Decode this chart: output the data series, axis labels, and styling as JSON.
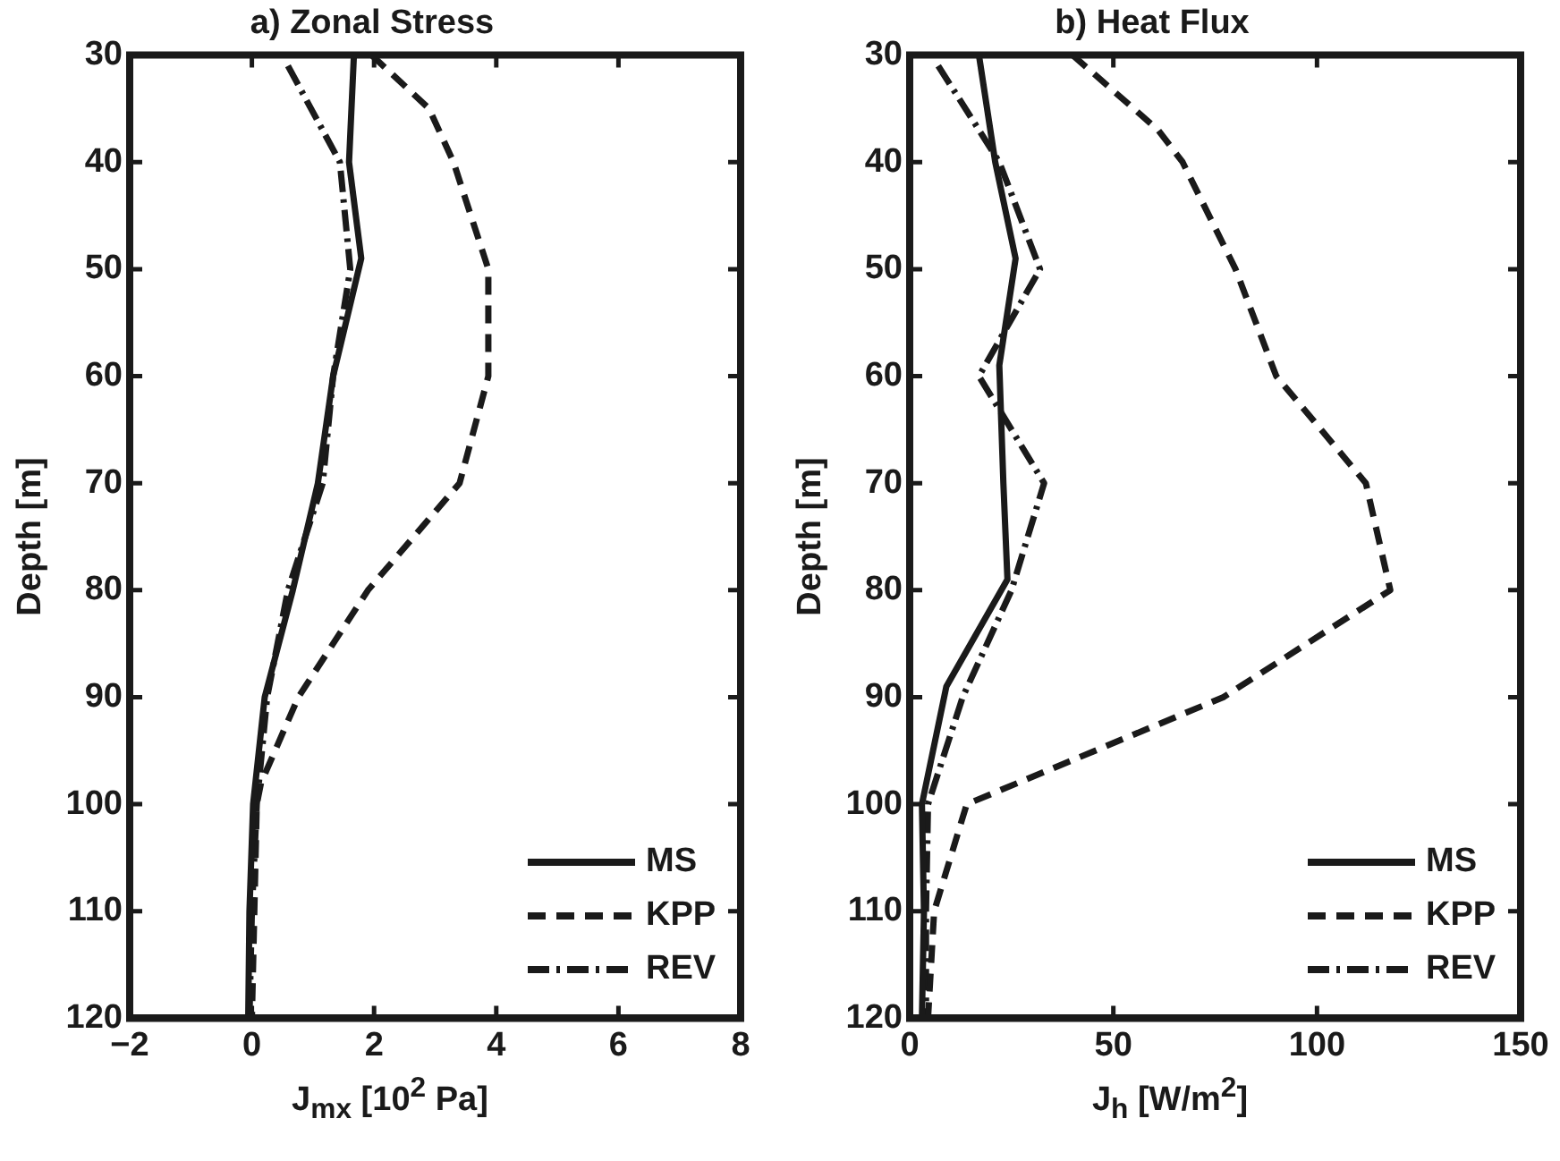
{
  "chart_data": [
    {
      "type": "line",
      "title": "a) Zonal Stress",
      "xlabel": "J$_{mx}$ [10$^{2}$ Pa]",
      "ylabel": "Depth [m]",
      "xlim": [
        -2,
        8
      ],
      "xticks": [
        {
          "value": -2,
          "label": "−2"
        },
        0,
        2,
        4,
        6,
        8
      ],
      "ylim": [
        120,
        30
      ],
      "yticks": [
        30,
        40,
        50,
        60,
        70,
        80,
        90,
        100,
        110,
        120
      ],
      "grid": false,
      "legend": "bottom right",
      "marker": "none",
      "series": [
        {
          "name": "MS",
          "color": "#1a1a1a",
          "line_style": "solid",
          "x": [
            1.67,
            1.59,
            1.79,
            1.33,
            1.08,
            0.67,
            0.21,
            0.02,
            -0.04,
            -0.06
          ],
          "values": [
            30,
            40,
            49,
            60,
            70,
            80,
            90,
            100,
            110,
            120
          ]
        },
        {
          "name": "KPP",
          "color": "#1a1a1a",
          "line_style": "dashed",
          "x": [
            1.96,
            2.9,
            3.3,
            3.87,
            3.87,
            3.4,
            1.9,
            0.76,
            0.15,
            0.08,
            0.04,
            0.0
          ],
          "values": [
            30,
            35,
            40,
            50,
            60,
            70,
            80,
            90,
            98,
            100,
            110,
            120
          ]
        },
        {
          "name": "REV",
          "color": "#1a1a1a",
          "line_style": "dashdot",
          "x": [
            0.59,
            1.44,
            1.61,
            1.33,
            1.16,
            0.59,
            0.25,
            0.08,
            0.0,
            -0.04
          ],
          "values": [
            31,
            40,
            50,
            60,
            70,
            80,
            90,
            100,
            110,
            120
          ]
        }
      ]
    },
    {
      "type": "line",
      "title": "b) Heat Flux",
      "xlabel": "J$_{h}$ [W/m$^{2}$]",
      "ylabel": "Depth [m]",
      "xlim": [
        0,
        150
      ],
      "xticks": [
        0,
        50,
        100,
        150
      ],
      "ylim": [
        120,
        30
      ],
      "yticks": [
        30,
        40,
        50,
        60,
        70,
        80,
        90,
        100,
        110,
        120
      ],
      "grid": false,
      "legend": "bottom right",
      "marker": "none",
      "series": [
        {
          "name": "MS",
          "color": "#1a1a1a",
          "line_style": "solid",
          "x": [
            17,
            21,
            26,
            22,
            23,
            24,
            9,
            3,
            3.5,
            3
          ],
          "values": [
            30,
            40,
            49,
            59,
            70,
            79,
            89,
            100,
            110,
            120
          ]
        },
        {
          "name": "KPP",
          "color": "#1a1a1a",
          "line_style": "dashed",
          "x": [
            40,
            61,
            67,
            80,
            90,
            112,
            118,
            77,
            14,
            6,
            4.5
          ],
          "values": [
            30,
            37,
            40,
            50,
            60,
            70,
            80,
            90,
            100,
            110,
            120
          ]
        },
        {
          "name": "REV",
          "color": "#1a1a1a",
          "line_style": "dashdot",
          "x": [
            7,
            22,
            32,
            17,
            33,
            25,
            13,
            4.5,
            4,
            4
          ],
          "values": [
            31,
            40,
            50,
            60,
            70,
            80,
            90,
            100,
            110,
            120
          ]
        }
      ]
    }
  ]
}
